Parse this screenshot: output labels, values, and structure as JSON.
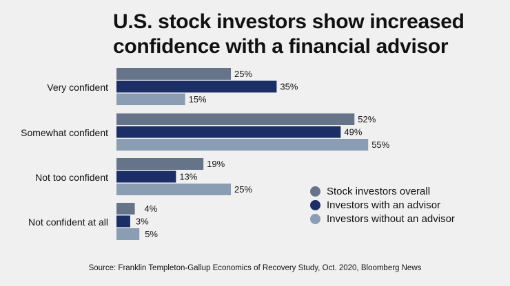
{
  "title": "U.S. stock investors show increased confidence with a financial advisor",
  "source": "Source: Franklin Templeton-Gallup Economics of Recovery Study, Oct. 2020, Bloomberg News",
  "chart_data": {
    "type": "bar",
    "orientation": "horizontal",
    "title": "U.S. stock investors show increased confidence with a financial advisor",
    "categories": [
      "Very confident",
      "Somewhat confident",
      "Not too confident",
      "Not confident at all"
    ],
    "series": [
      {
        "name": "Stock investors overall",
        "color": "#66748a",
        "values": [
          25,
          52,
          19,
          4
        ]
      },
      {
        "name": "Investors with an advisor",
        "color": "#1b2f66",
        "values": [
          35,
          49,
          13,
          3
        ]
      },
      {
        "name": "Investors without an advisor",
        "color": "#8a9db2",
        "values": [
          15,
          55,
          25,
          5
        ]
      }
    ],
    "value_suffix": "%",
    "grid": false,
    "legend": "right"
  }
}
